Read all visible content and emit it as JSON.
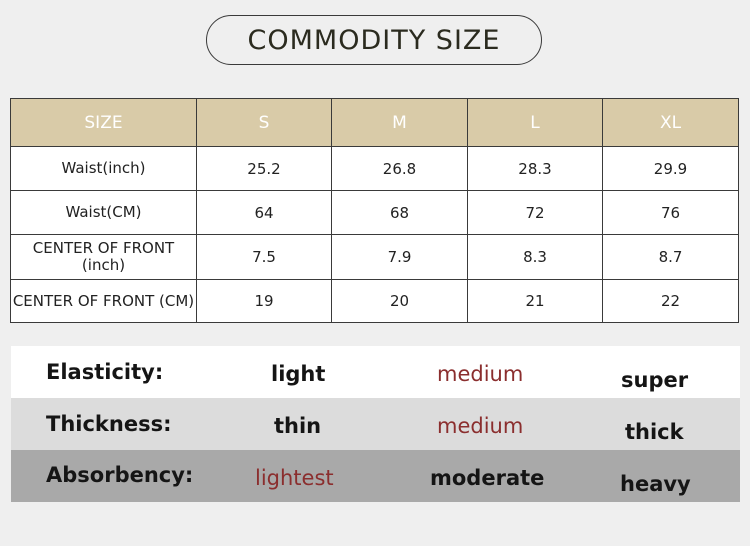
{
  "title": "COMMODITY SIZE",
  "size_table": {
    "headers": [
      "SIZE",
      "S",
      "M",
      "L",
      "XL"
    ],
    "rows": [
      {
        "label": "Waist(inch)",
        "values": [
          "25.2",
          "26.8",
          "28.3",
          "29.9"
        ]
      },
      {
        "label": "Waist(CM)",
        "values": [
          "64",
          "68",
          "72",
          "76"
        ]
      },
      {
        "label": "CENTER OF FRONT (inch)",
        "values": [
          "7.5",
          "7.9",
          "8.3",
          "8.7"
        ]
      },
      {
        "label": "CENTER OF FRONT (CM)",
        "values": [
          "19",
          "20",
          "21",
          "22"
        ]
      }
    ]
  },
  "properties": [
    {
      "label": "Elasticity:",
      "options": [
        "light",
        "medium",
        "super"
      ],
      "selected_index": 1
    },
    {
      "label": "Thickness:",
      "options": [
        "thin",
        "medium",
        "thick"
      ],
      "selected_index": 1
    },
    {
      "label": "Absorbency:",
      "options": [
        "lightest",
        "moderate",
        "heavy"
      ],
      "selected_index": 0
    }
  ],
  "colors": {
    "header_bg": "#d9cba8",
    "accent": "#8b2e2e",
    "row_white": "#ffffff",
    "row_light_gray": "#dcdcdc",
    "row_gray": "#a9a9a9"
  }
}
